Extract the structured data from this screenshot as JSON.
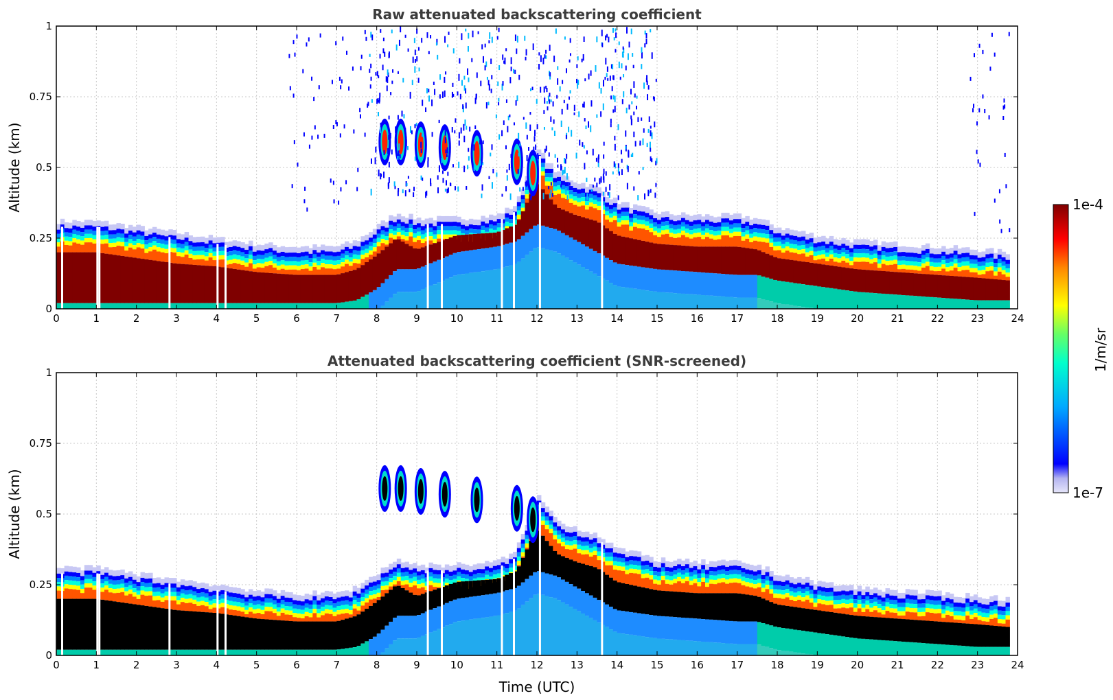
{
  "chart_data": [
    {
      "type": "heatmap",
      "title": "Raw attenuated backscattering coefficient",
      "xlabel": "",
      "ylabel": "Altitude (km)",
      "xlim": [
        0,
        24
      ],
      "ylim": [
        0,
        1
      ],
      "xticks": [
        "0",
        "1",
        "2",
        "3",
        "4",
        "5",
        "6",
        "7",
        "8",
        "9",
        "10",
        "11",
        "12",
        "13",
        "14",
        "15",
        "16",
        "17",
        "18",
        "19",
        "20",
        "21",
        "22",
        "23",
        "24"
      ],
      "yticks": [
        "0",
        "0.25",
        "0.5",
        "0.75",
        "1"
      ],
      "grid": true,
      "colorbar": {
        "label": "1/m/sr",
        "min_label": "1e-7",
        "max_label": "1e-4",
        "scale": "log"
      },
      "data_end_time": 23.8,
      "layer_top_km": {
        "x": [
          0,
          1,
          2,
          3,
          4,
          5,
          6,
          7,
          7.5,
          8,
          8.5,
          9,
          10,
          11,
          11.5,
          12,
          12.5,
          13,
          13.5,
          14,
          15,
          16,
          17,
          17.5,
          18,
          19,
          20,
          21,
          22,
          23,
          23.8
        ],
        "y": [
          0.29,
          0.29,
          0.27,
          0.25,
          0.23,
          0.21,
          0.2,
          0.2,
          0.22,
          0.27,
          0.32,
          0.3,
          0.3,
          0.31,
          0.35,
          0.55,
          0.46,
          0.43,
          0.41,
          0.36,
          0.32,
          0.31,
          0.31,
          0.3,
          0.27,
          0.24,
          0.22,
          0.21,
          0.2,
          0.19,
          0.18
        ]
      },
      "saturated_layer_km": {
        "x": [
          0,
          1,
          2,
          3,
          4,
          5,
          6,
          7,
          7.5,
          8,
          8.5,
          9,
          10,
          11,
          11.5,
          12,
          12.5,
          13,
          13.5,
          14,
          15,
          16,
          17,
          17.5,
          18,
          19,
          20,
          21,
          22,
          23,
          23.8
        ],
        "top": [
          0.2,
          0.2,
          0.18,
          0.16,
          0.15,
          0.13,
          0.12,
          0.12,
          0.14,
          0.19,
          0.25,
          0.21,
          0.26,
          0.27,
          0.3,
          0.45,
          0.36,
          0.33,
          0.31,
          0.26,
          0.23,
          0.22,
          0.22,
          0.21,
          0.18,
          0.16,
          0.14,
          0.13,
          0.12,
          0.11,
          0.1
        ],
        "bottom": [
          0.02,
          0.02,
          0.02,
          0.02,
          0.02,
          0.02,
          0.02,
          0.02,
          0.03,
          0.07,
          0.14,
          0.14,
          0.2,
          0.22,
          0.24,
          0.3,
          0.28,
          0.24,
          0.2,
          0.16,
          0.14,
          0.13,
          0.12,
          0.12,
          0.1,
          0.08,
          0.06,
          0.05,
          0.04,
          0.03,
          0.03
        ]
      },
      "cloud_patches": [
        {
          "time": 8.2,
          "alt": 0.59
        },
        {
          "time": 8.6,
          "alt": 0.59
        },
        {
          "time": 9.1,
          "alt": 0.58
        },
        {
          "time": 9.7,
          "alt": 0.57
        },
        {
          "time": 10.5,
          "alt": 0.55
        },
        {
          "time": 11.5,
          "alt": 0.52
        },
        {
          "time": 11.9,
          "alt": 0.48
        }
      ]
    },
    {
      "type": "heatmap",
      "title": "Attenuated backscattering coefficient (SNR-screened)",
      "xlabel": "Time (UTC)",
      "ylabel": "Altitude (km)",
      "xlim": [
        0,
        24
      ],
      "ylim": [
        0,
        1
      ],
      "xticks": [
        "0",
        "1",
        "2",
        "3",
        "4",
        "5",
        "6",
        "7",
        "8",
        "9",
        "10",
        "11",
        "12",
        "13",
        "14",
        "15",
        "16",
        "17",
        "18",
        "19",
        "20",
        "21",
        "22",
        "23",
        "24"
      ],
      "yticks": [
        "0",
        "0.25",
        "0.5",
        "0.75",
        "1"
      ],
      "grid": true,
      "screened_color": "#000000"
    }
  ],
  "colors": {
    "colormap_low": "#e6e6fa",
    "colormap_high": "#7f0000",
    "title": "#3c3c3c",
    "screened": "#000000"
  }
}
